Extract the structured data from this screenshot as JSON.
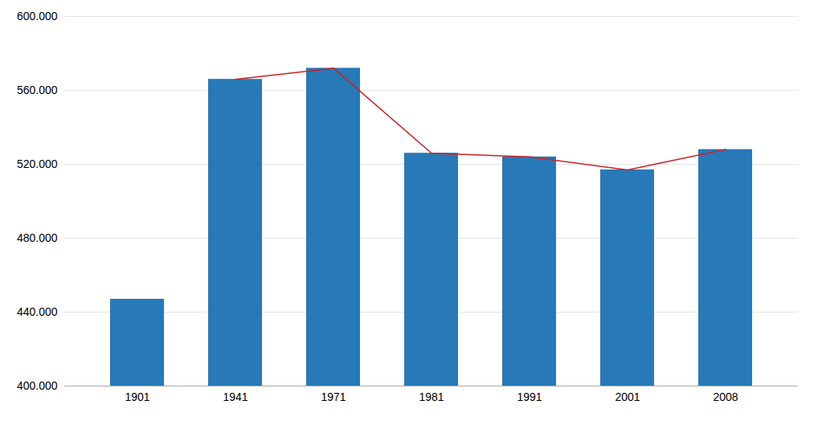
{
  "chart_data": {
    "type": "bar",
    "categories": [
      "1901",
      "1941",
      "1971",
      "1981",
      "1991",
      "2001",
      "2008"
    ],
    "series": [
      {
        "type": "bar",
        "color": "#2779B8",
        "values": [
          447000,
          566000,
          572000,
          526000,
          524000,
          517000,
          528000
        ]
      },
      {
        "type": "line",
        "color": "#CC2222",
        "values": [
          null,
          566000,
          572000,
          526000,
          524000,
          517000,
          528000
        ]
      }
    ],
    "ylim": [
      400000,
      600000
    ],
    "yticks": [
      {
        "value": 400000,
        "label": "400.000"
      },
      {
        "value": 440000,
        "label": "440.000"
      },
      {
        "value": 480000,
        "label": "480.000"
      },
      {
        "value": 520000,
        "label": "520.000"
      },
      {
        "value": 560000,
        "label": "560.000"
      },
      {
        "value": 600000,
        "label": "600.000"
      }
    ],
    "grid": true
  }
}
